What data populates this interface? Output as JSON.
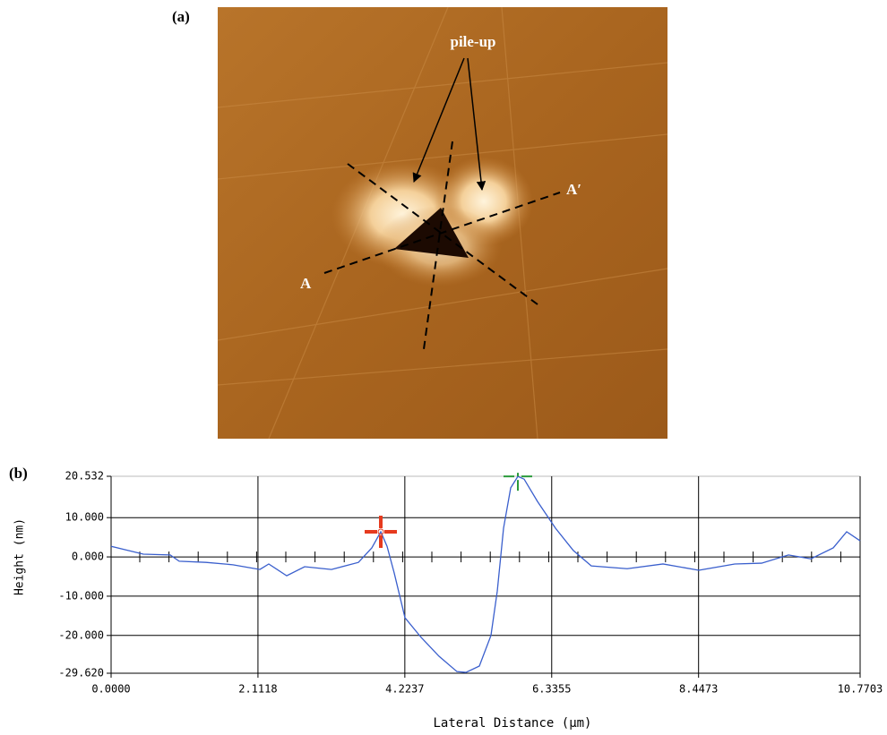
{
  "panel_a": {
    "label": "(a)",
    "pile_up": "pile-up",
    "point_a": "A",
    "point_a_prime": "A′"
  },
  "chart_data": {
    "type": "line",
    "title": "(b)",
    "x_label": "Lateral Distance (μm)",
    "y_label": "Height (nm)",
    "xlim": [
      0,
      10.7703
    ],
    "ylim": [
      -29.62,
      20.532
    ],
    "xticks": [
      {
        "value": 0,
        "label": "0.0000"
      },
      2.1118,
      4.2237,
      6.3355,
      8.4473,
      10.7703
    ],
    "yticks": [
      {
        "value": 20.532,
        "label": "20.532"
      },
      {
        "value": 10,
        "label": "10.000"
      },
      {
        "value": 0,
        "label": "0.000"
      },
      {
        "value": -10,
        "label": "-10.000"
      },
      {
        "value": -20,
        "label": "-20.000"
      },
      {
        "value": -29.62,
        "label": "-29.620"
      }
    ],
    "grid": true,
    "series": [
      {
        "color": "#3a5fcd",
        "x": [
          0,
          0.206,
          0.464,
          0.85,
          0.979,
          1.366,
          1.752,
          2.139,
          2.267,
          2.525,
          2.783,
          3.169,
          3.556,
          3.749,
          3.878,
          3.968,
          4.071,
          4.226,
          4.458,
          4.715,
          4.973,
          5.102,
          5.295,
          5.462,
          5.553,
          5.643,
          5.746,
          5.849,
          5.939,
          6.132,
          6.39,
          6.648,
          6.905,
          7.421,
          7.936,
          8.451,
          8.967,
          9.353,
          9.74,
          10.062,
          10.384,
          10.577,
          10.77
        ],
        "values": [
          2.7,
          1.8,
          0.7,
          0.5,
          -1.1,
          -1.4,
          -2,
          -3.2,
          -1.8,
          -4.8,
          -2.5,
          -3.2,
          -1.4,
          2.3,
          6.4,
          2.7,
          -4.1,
          -15.5,
          -20.5,
          -25.3,
          -29.2,
          -29.4,
          -27.8,
          -20,
          -8.7,
          7.3,
          17.6,
          20.5,
          19.8,
          14.1,
          7.3,
          1.6,
          -2.3,
          -3,
          -1.8,
          -3.4,
          -1.8,
          -1.6,
          0.5,
          -0.5,
          2.3,
          6.4,
          4.1
        ]
      }
    ],
    "cursors": [
      {
        "x": 3.878,
        "y": 6.4,
        "color": "#e63a1e"
      },
      {
        "x": 5.849,
        "y": 20.5,
        "color": "#2a9a3a"
      }
    ]
  }
}
